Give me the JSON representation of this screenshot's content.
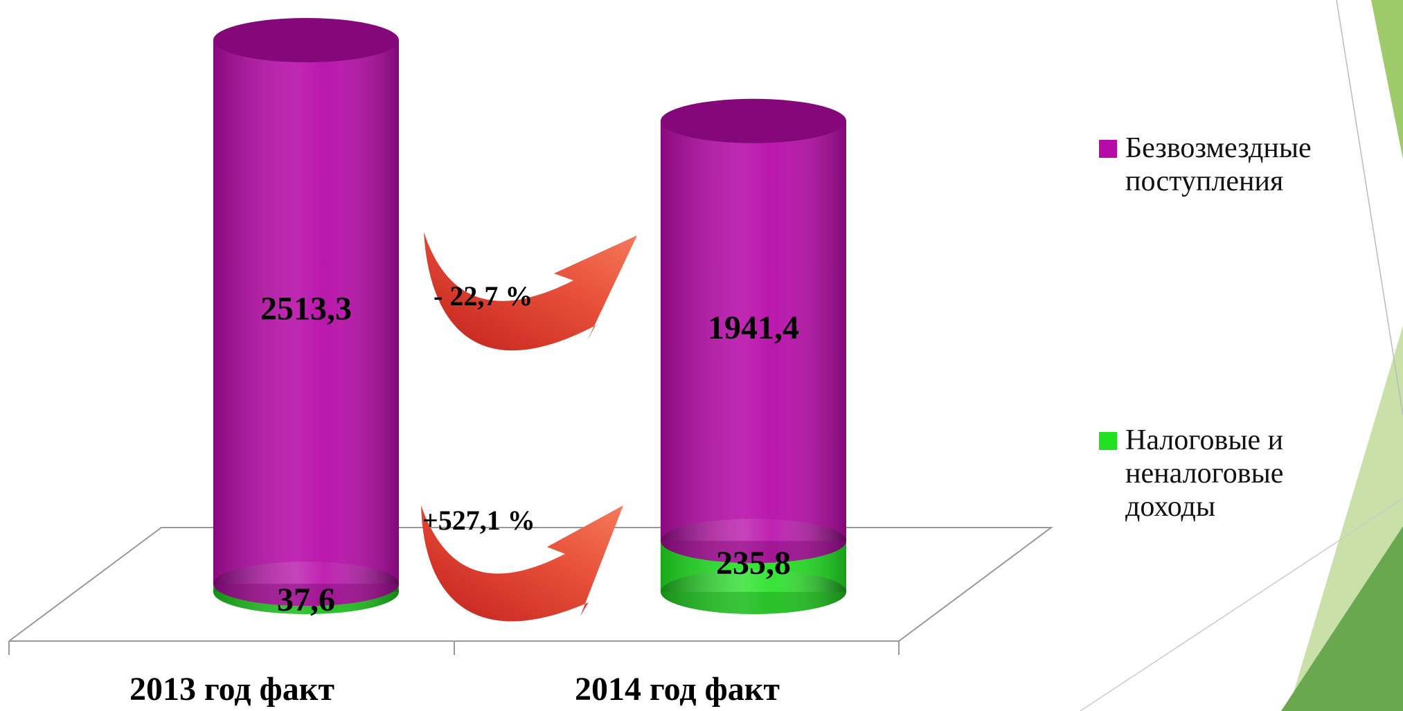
{
  "chart_data": {
    "type": "cylinder-stacked-bar",
    "categories": [
      "2013 год факт",
      "2014 год факт"
    ],
    "series": [
      {
        "name": "Налоговые и неналоговые доходы",
        "color": "#22e022",
        "values": [
          37.6,
          235.8
        ],
        "value_labels": [
          "37,6",
          "235,8"
        ]
      },
      {
        "name": "Безвозмездные поступления",
        "color": "#b70ba8",
        "values": [
          2513.3,
          1941.4
        ],
        "value_labels": [
          "2513,3",
          "1941,4"
        ]
      }
    ],
    "annotations": [
      "- 22,7 %",
      "+527,1 %"
    ],
    "legend": "right"
  }
}
